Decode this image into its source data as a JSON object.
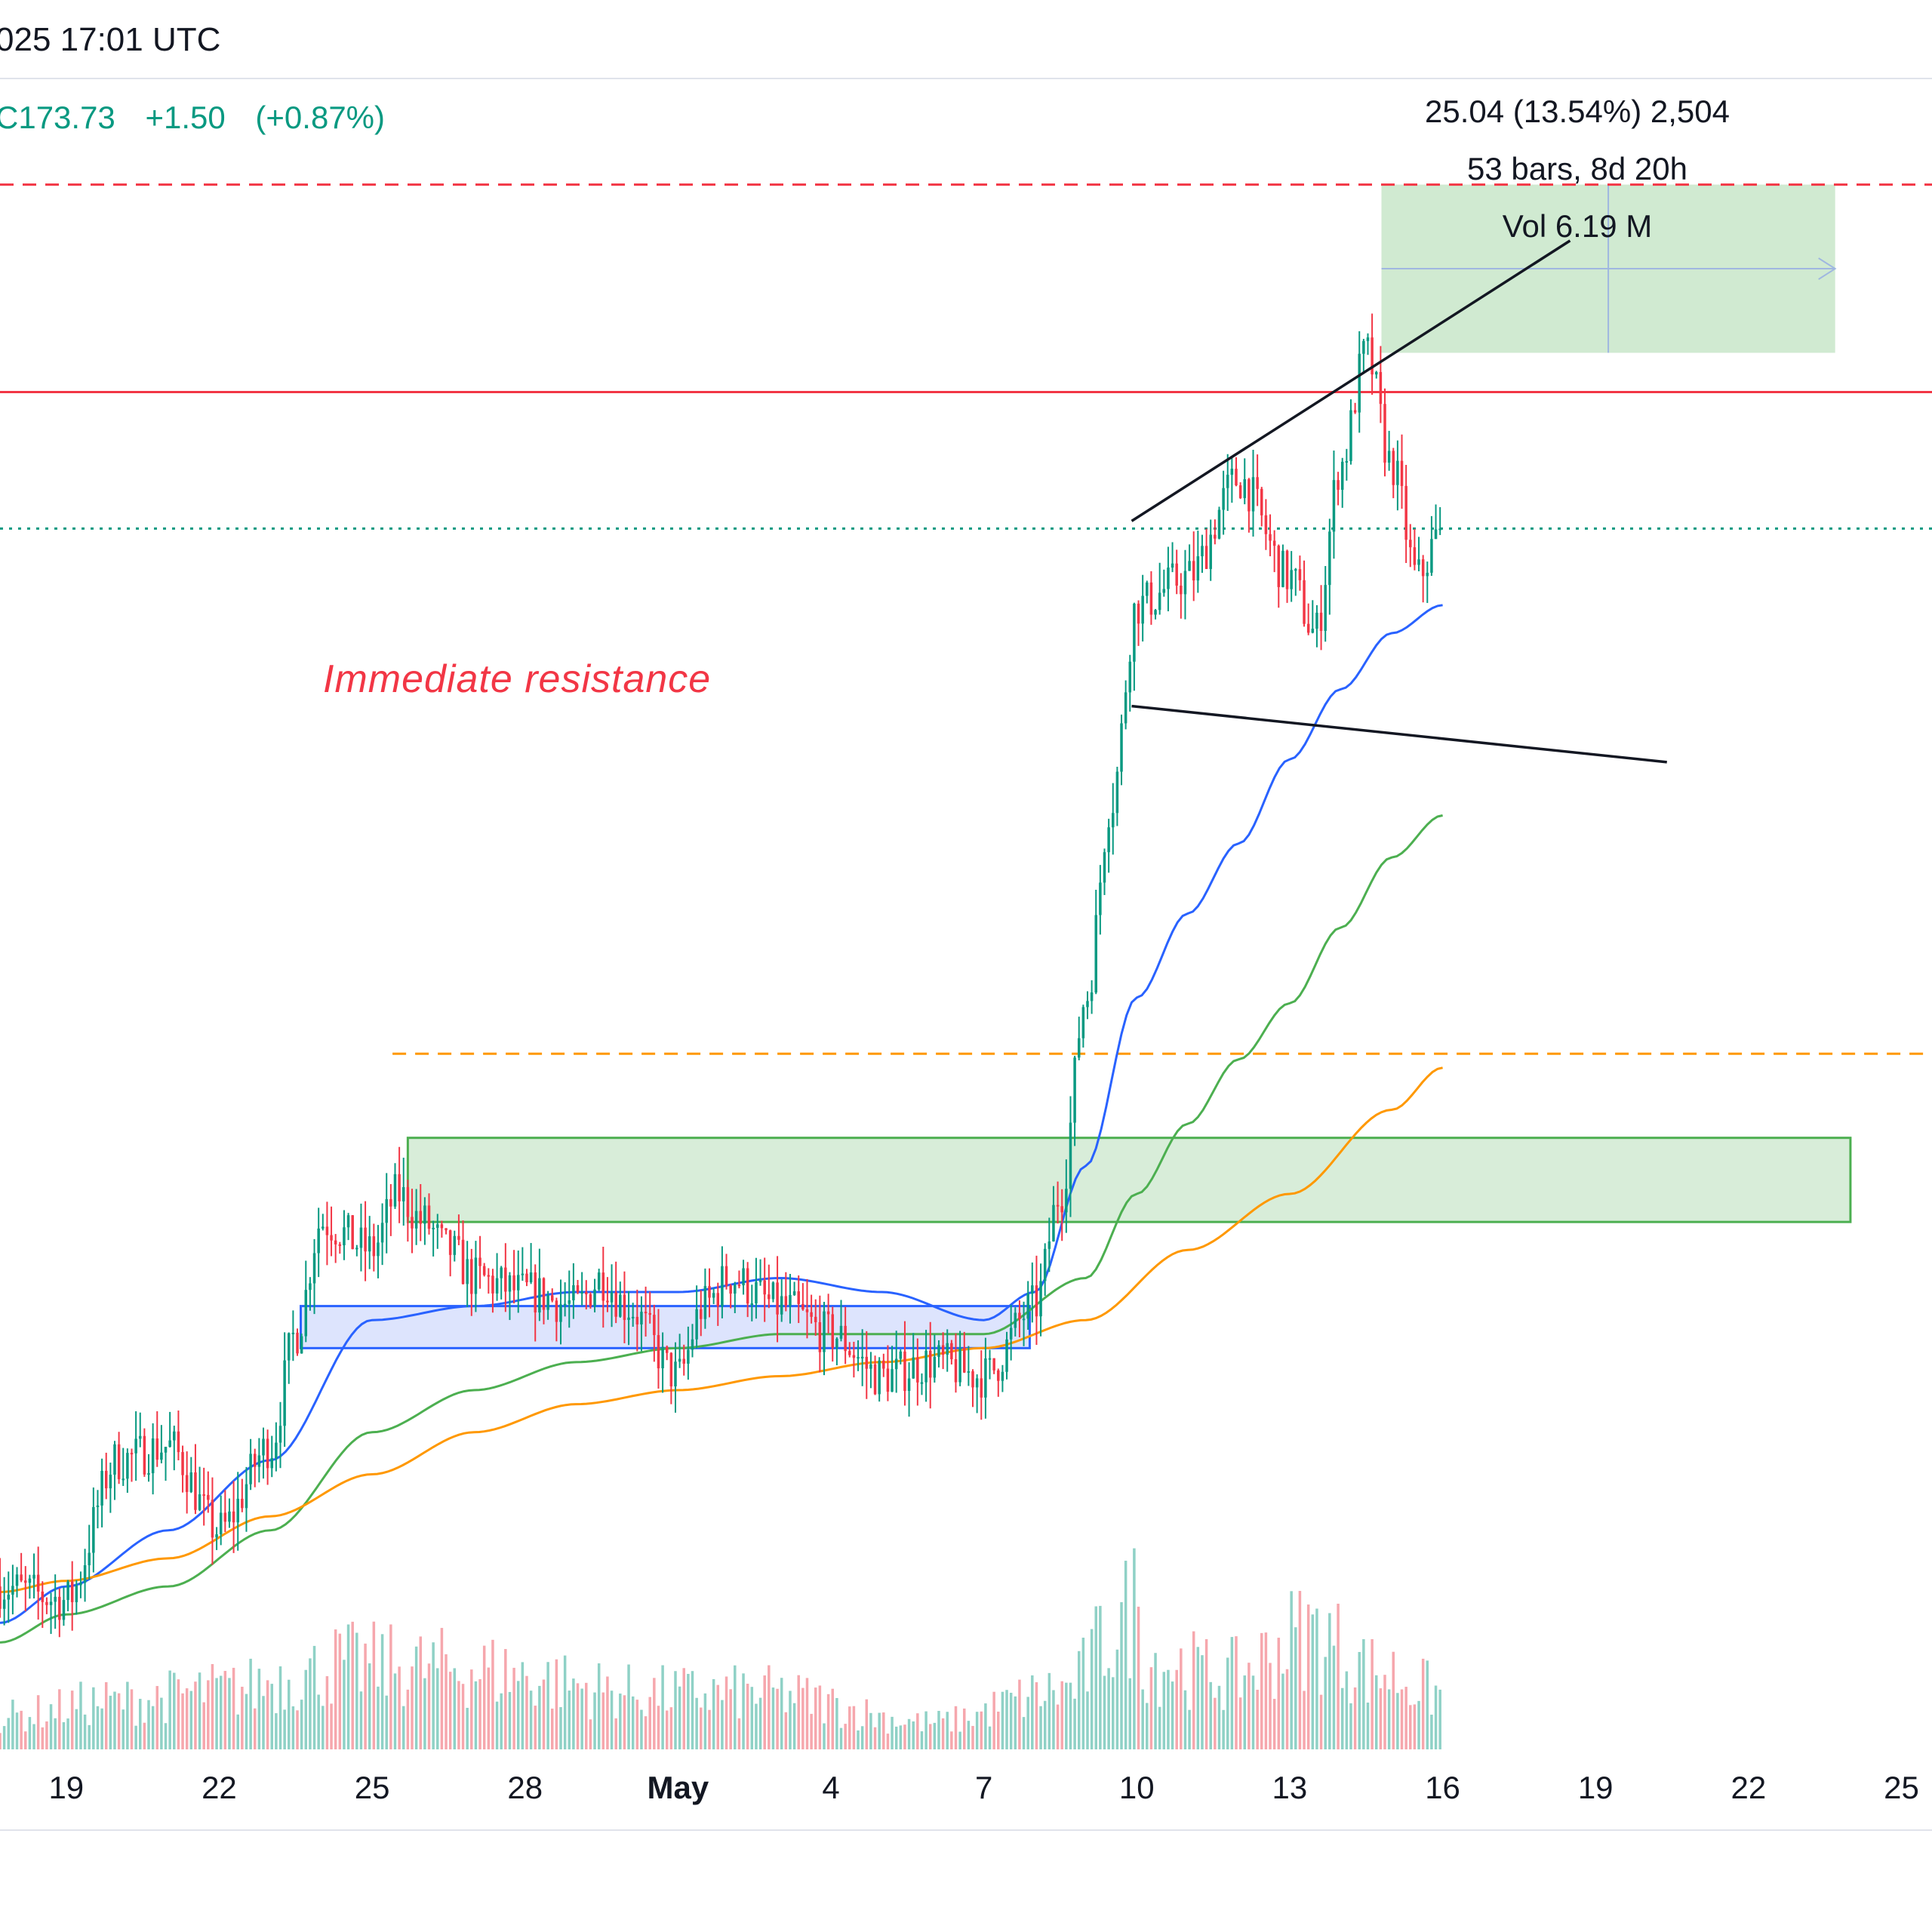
{
  "header": {
    "datetime": "025 17:01 UTC",
    "price": "C173.73",
    "change": "+1.50",
    "change_pct": "(+0.87%)"
  },
  "measure_tool": {
    "line1": "25.04 (13.54%) 2,504",
    "line2": "53 bars, 8d 20h",
    "line3": "Vol 6.19 M"
  },
  "annotations": {
    "resistance_label": "Immediate resistance"
  },
  "colors": {
    "up": "#089981",
    "down": "#f23645",
    "ma_fast": "#2962ff",
    "ma_mid": "#4caf50",
    "ma_slow": "#ff9800",
    "resistance": "#f23645",
    "target_zone": "#c8e6c9"
  },
  "chart_data": {
    "type": "candlestick",
    "x_tick_labels": [
      "19",
      "22",
      "25",
      "28",
      "May",
      "4",
      "7",
      "10",
      "13",
      "16",
      "19",
      "22",
      "25"
    ],
    "x_tick_days": [
      18,
      21,
      24,
      27,
      30,
      33,
      36,
      39,
      42,
      45,
      48,
      51,
      54
    ],
    "x_range_days": [
      16.7,
      54.6
    ],
    "y_range": [
      130,
      190
    ],
    "candle_timeframe": "2h",
    "candles_window_days": [
      16.7,
      45.0
    ],
    "price_path": [
      [
        16.7,
        136.0
      ],
      [
        18.0,
        135.5
      ],
      [
        19.0,
        140.5
      ],
      [
        20.0,
        141.0
      ],
      [
        21.0,
        138.0
      ],
      [
        22.0,
        141.0
      ],
      [
        22.5,
        145.0
      ],
      [
        23.0,
        149.0
      ],
      [
        24.0,
        148.0
      ],
      [
        24.5,
        150.0
      ],
      [
        25.0,
        149.0
      ],
      [
        25.5,
        148.0
      ],
      [
        26.0,
        147.0
      ],
      [
        27.0,
        146.5
      ],
      [
        28.0,
        146.0
      ],
      [
        28.5,
        147.0
      ],
      [
        29.0,
        146.0
      ],
      [
        30.0,
        143.5
      ],
      [
        30.5,
        146.0
      ],
      [
        31.0,
        147.0
      ],
      [
        32.0,
        146.0
      ],
      [
        33.0,
        145.0
      ],
      [
        34.0,
        143.5
      ],
      [
        35.0,
        144.0
      ],
      [
        36.0,
        143.5
      ],
      [
        37.0,
        146.0
      ],
      [
        37.5,
        150.0
      ],
      [
        38.0,
        157.0
      ],
      [
        38.5,
        164.0
      ],
      [
        39.0,
        171.0
      ],
      [
        40.0,
        172.0
      ],
      [
        41.0,
        175.5
      ],
      [
        42.0,
        172.0
      ],
      [
        42.5,
        170.0
      ],
      [
        43.0,
        176.0
      ],
      [
        43.5,
        180.0
      ],
      [
        44.0,
        176.0
      ],
      [
        44.5,
        172.0
      ],
      [
        45.0,
        173.73
      ]
    ],
    "moving_averages": [
      {
        "name": "",
        "color": "#2962ff",
        "points": [
          [
            16.7,
            134.7
          ],
          [
            18,
            136.0
          ],
          [
            20,
            138.0
          ],
          [
            22,
            140.5
          ],
          [
            24,
            145.5
          ],
          [
            26,
            146.0
          ],
          [
            28,
            146.5
          ],
          [
            30,
            146.5
          ],
          [
            32,
            147.0
          ],
          [
            34,
            146.5
          ],
          [
            36,
            145.5
          ],
          [
            37,
            146.5
          ],
          [
            38,
            151.0
          ],
          [
            39,
            157.0
          ],
          [
            40,
            160.0
          ],
          [
            41,
            162.5
          ],
          [
            42,
            165.5
          ],
          [
            43,
            168.0
          ],
          [
            44,
            170.0
          ],
          [
            45,
            171.0
          ]
        ]
      },
      {
        "name": "",
        "color": "#4caf50",
        "points": [
          [
            16.7,
            134.0
          ],
          [
            18,
            135.0
          ],
          [
            20,
            136.0
          ],
          [
            22,
            138.0
          ],
          [
            24,
            141.5
          ],
          [
            26,
            143.0
          ],
          [
            28,
            144.0
          ],
          [
            30,
            144.5
          ],
          [
            32,
            145.0
          ],
          [
            34,
            145.0
          ],
          [
            36,
            145.0
          ],
          [
            38,
            147.0
          ],
          [
            39,
            150.0
          ],
          [
            40,
            152.5
          ],
          [
            41,
            154.8
          ],
          [
            42,
            156.8
          ],
          [
            43,
            159.5
          ],
          [
            44,
            162.0
          ],
          [
            45,
            163.5
          ]
        ]
      },
      {
        "name": "",
        "color": "#ff9800",
        "points": [
          [
            16.7,
            135.8
          ],
          [
            18,
            136.2
          ],
          [
            20,
            137.0
          ],
          [
            22,
            138.5
          ],
          [
            24,
            140.0
          ],
          [
            26,
            141.5
          ],
          [
            28,
            142.5
          ],
          [
            30,
            143.0
          ],
          [
            32,
            143.5
          ],
          [
            34,
            144.0
          ],
          [
            36,
            144.5
          ],
          [
            38,
            145.5
          ],
          [
            40,
            148.0
          ],
          [
            42,
            150.0
          ],
          [
            44,
            153.0
          ],
          [
            45,
            154.5
          ]
        ]
      }
    ],
    "horizontal_levels": [
      {
        "price": 186.0,
        "style": "dashed",
        "color": "#f23645",
        "from_day": 16.7
      },
      {
        "price": 178.6,
        "style": "solid",
        "color": "#f23645",
        "from_day": 16.7
      },
      {
        "price": 173.73,
        "style": "dotted",
        "color": "#089981",
        "from_day": 16.7
      },
      {
        "price": 155.0,
        "style": "dashed",
        "color": "#ff9800",
        "from_day": 24.4
      }
    ],
    "zones": [
      {
        "label": "",
        "from_day": 24.7,
        "to_day": 53.0,
        "price_low": 149.0,
        "price_high": 152.0,
        "fill": "#c8e6c9",
        "stroke": "#4caf50"
      },
      {
        "label": "",
        "from_day": 22.6,
        "to_day": 36.9,
        "price_low": 144.5,
        "price_high": 146.0,
        "fill": "#cfd8fc",
        "stroke": "#2962ff"
      },
      {
        "label": "",
        "from_day": 43.8,
        "to_day": 52.7,
        "price_low": 180.0,
        "price_high": 186.0,
        "fill": "#c8e6c9",
        "stroke": "none"
      }
    ],
    "trendlines": [
      {
        "from": [
          38.9,
          174.0
        ],
        "to": [
          47.5,
          184.0
        ]
      },
      {
        "from": [
          38.9,
          167.4
        ],
        "to": [
          49.4,
          165.4
        ]
      }
    ],
    "volume_scale_max": 1.0,
    "volume_peaks": [
      [
        16.7,
        0.22
      ],
      [
        18.8,
        0.32
      ],
      [
        21.2,
        0.4
      ],
      [
        22.6,
        0.5
      ],
      [
        23.4,
        0.58
      ],
      [
        25.5,
        0.55
      ],
      [
        29.5,
        0.38
      ],
      [
        31.6,
        0.38
      ],
      [
        35.0,
        0.18
      ],
      [
        37.6,
        0.4
      ],
      [
        38.6,
        0.8
      ],
      [
        39.0,
        1.0
      ],
      [
        39.2,
        0.6
      ],
      [
        40.8,
        0.5
      ],
      [
        42.4,
        0.78
      ],
      [
        43.8,
        0.52
      ],
      [
        45.0,
        0.38
      ]
    ]
  }
}
